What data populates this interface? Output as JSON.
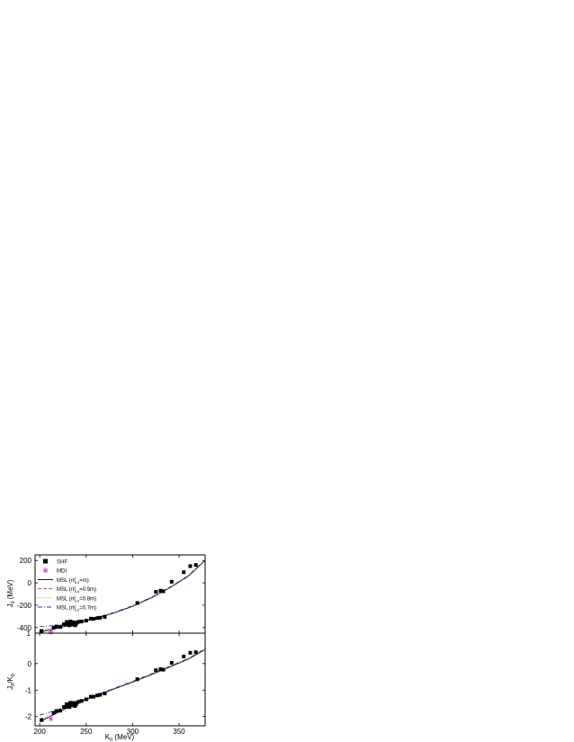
{
  "chart_data": [
    {
      "type": "scatter",
      "panel": "top",
      "ylabel": "J_0 (MeV)",
      "ylabel_main": "J",
      "ylabel_sub": "0",
      "ylabel_unit": " (MeV)",
      "xlim": [
        195,
        378
      ],
      "ylim": [
        -450,
        250
      ],
      "yticks": [
        -400,
        -200,
        0,
        200
      ],
      "ytick_labels": [
        "-400",
        "-200",
        "0",
        "200"
      ],
      "legend": [
        {
          "label": "SHF",
          "marker": "square",
          "color": "#000000"
        },
        {
          "label": "MDI",
          "marker": "asterisk",
          "color": "#cc44cc"
        },
        {
          "label": "MSL (m",
          "sub": "s,0",
          "sup": "*",
          "suffix": "=m)",
          "style": "solid",
          "color": "#000000"
        },
        {
          "label": "MSL (m",
          "sub": "s,0",
          "sup": "*",
          "suffix": "=0.9m)",
          "style": "dashed",
          "color": "#e0302a"
        },
        {
          "label": "MSL (m",
          "sub": "s,0",
          "sup": "*",
          "suffix": "=0.8m)",
          "style": "dotted",
          "color": "#33aa33"
        },
        {
          "label": "MSL (m",
          "sub": "s,0",
          "sup": "*",
          "suffix": "=0.7m)",
          "style": "dashdot",
          "color": "#2233cc"
        }
      ],
      "series": [
        {
          "name": "SHF",
          "marker": "square",
          "color": "#000000",
          "x": [
            202,
            215,
            218,
            222,
            226,
            228,
            229,
            230,
            231,
            232,
            233,
            234,
            235,
            236,
            237,
            238,
            239,
            240,
            242,
            245,
            250,
            255,
            258,
            262,
            265,
            270,
            305,
            325,
            330,
            333,
            342,
            355,
            362,
            368
          ],
          "y": [
            -430,
            -400,
            -390,
            -395,
            -370,
            -372,
            -350,
            -375,
            -358,
            -380,
            -345,
            -360,
            -372,
            -352,
            -362,
            -380,
            -368,
            -355,
            -348,
            -345,
            -338,
            -320,
            -322,
            -315,
            -312,
            -305,
            -180,
            -80,
            -70,
            -75,
            10,
            95,
            150,
            160
          ]
        },
        {
          "name": "MDI",
          "marker": "asterisk",
          "color": "#cc44cc",
          "x": [
            212
          ],
          "y": [
            -440
          ]
        },
        {
          "name": "MSL (m*s,0=m)",
          "style": "solid",
          "color": "#000000",
          "x": [
            200,
            220,
            240,
            260,
            280,
            300,
            320,
            340,
            360,
            378
          ],
          "y": [
            -440,
            -405,
            -360,
            -320,
            -270,
            -210,
            -135,
            -45,
            60,
            200
          ]
        },
        {
          "name": "MSL (m*s,0=0.9m)",
          "style": "dashed",
          "color": "#e0302a",
          "x": [
            200,
            220,
            240,
            260,
            280,
            300,
            320,
            340,
            360,
            378
          ],
          "y": [
            -435,
            -403,
            -358,
            -318,
            -268,
            -208,
            -133,
            -43,
            62,
            202
          ]
        },
        {
          "name": "MSL (m*s,0=0.8m)",
          "style": "dotted",
          "color": "#33aa33",
          "x": [
            200,
            220,
            240,
            260,
            280,
            300,
            320,
            340,
            360,
            378
          ],
          "y": [
            -420,
            -395,
            -355,
            -316,
            -266,
            -206,
            -131,
            -41,
            64,
            204
          ]
        },
        {
          "name": "MSL (m*s,0=0.7m)",
          "style": "dashdot",
          "color": "#2233cc",
          "x": [
            200,
            220,
            240,
            260,
            280,
            300,
            320,
            340,
            360,
            378
          ],
          "y": [
            -390,
            -382,
            -350,
            -312,
            -264,
            -204,
            -129,
            -39,
            66,
            206
          ]
        }
      ]
    },
    {
      "type": "scatter",
      "panel": "bottom",
      "xlabel": "K_0 (MeV)",
      "xlabel_main": "K",
      "xlabel_sub": "0",
      "xlabel_unit": " (MeV)",
      "ylabel": "J_0/K_0",
      "ylabel_main1": "J",
      "ylabel_sub1": "0",
      "ylabel_mid": "/K",
      "ylabel_sub2": "0",
      "xlim": [
        195,
        378
      ],
      "ylim": [
        -2.35,
        1.15
      ],
      "xticks": [
        200,
        250,
        300,
        350
      ],
      "xtick_labels": [
        "200",
        "250",
        "300",
        "350"
      ],
      "yticks": [
        -2,
        -1,
        0
      ],
      "ytick_labels": [
        "-2",
        "-1",
        "0"
      ],
      "top_ytick_label": "1",
      "series": [
        {
          "name": "SHF",
          "marker": "square",
          "color": "#000000",
          "x": [
            202,
            215,
            218,
            222,
            226,
            228,
            229,
            230,
            231,
            232,
            233,
            234,
            235,
            236,
            237,
            238,
            239,
            240,
            242,
            245,
            250,
            255,
            258,
            262,
            265,
            270,
            305,
            325,
            330,
            333,
            342,
            355,
            362,
            368
          ],
          "y": [
            -2.13,
            -1.86,
            -1.79,
            -1.78,
            -1.64,
            -1.63,
            -1.53,
            -1.63,
            -1.55,
            -1.64,
            -1.48,
            -1.54,
            -1.58,
            -1.49,
            -1.53,
            -1.6,
            -1.54,
            -1.48,
            -1.44,
            -1.41,
            -1.35,
            -1.25,
            -1.25,
            -1.2,
            -1.18,
            -1.13,
            -0.59,
            -0.25,
            -0.21,
            -0.23,
            0.03,
            0.27,
            0.41,
            0.43
          ]
        },
        {
          "name": "MDI",
          "marker": "asterisk",
          "color": "#cc44cc",
          "x": [
            212
          ],
          "y": [
            -2.08
          ]
        },
        {
          "name": "MSL (m*s,0=m)",
          "style": "solid",
          "color": "#000000",
          "x": [
            200,
            220,
            240,
            260,
            280,
            300,
            320,
            340,
            360,
            378
          ],
          "y": [
            -2.2,
            -1.84,
            -1.5,
            -1.23,
            -0.96,
            -0.7,
            -0.42,
            -0.13,
            0.17,
            0.53
          ]
        },
        {
          "name": "MSL (m*s,0=0.9m)",
          "style": "dashed",
          "color": "#e0302a",
          "x": [
            200,
            220,
            240,
            260,
            280,
            300,
            320,
            340,
            360,
            378
          ],
          "y": [
            -2.18,
            -1.83,
            -1.49,
            -1.22,
            -0.95,
            -0.69,
            -0.41,
            -0.12,
            0.18,
            0.54
          ]
        },
        {
          "name": "MSL (m*s,0=0.8m)",
          "style": "dotted",
          "color": "#33aa33",
          "x": [
            200,
            220,
            240,
            260,
            280,
            300,
            320,
            340,
            360,
            378
          ],
          "y": [
            -2.1,
            -1.8,
            -1.48,
            -1.21,
            -0.94,
            -0.68,
            -0.4,
            -0.11,
            0.19,
            0.55
          ]
        },
        {
          "name": "MSL (m*s,0=0.7m)",
          "style": "dashdot",
          "color": "#2233cc",
          "x": [
            200,
            220,
            240,
            260,
            280,
            300,
            320,
            340,
            360,
            378
          ],
          "y": [
            -1.95,
            -1.74,
            -1.46,
            -1.2,
            -0.93,
            -0.67,
            -0.39,
            -0.1,
            0.2,
            0.56
          ]
        }
      ]
    }
  ]
}
